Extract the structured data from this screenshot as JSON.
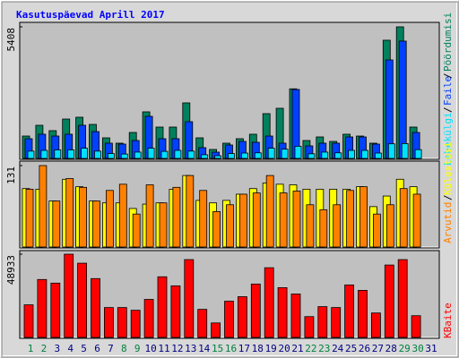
{
  "title": "Kasutuspäevad Aprill 2017",
  "separator": "/",
  "chart_data": [
    {
      "type": "bar",
      "categories": [
        1,
        2,
        3,
        4,
        5,
        6,
        7,
        8,
        9,
        10,
        11,
        12,
        13,
        14,
        15,
        16,
        17,
        18,
        19,
        20,
        21,
        22,
        23,
        24,
        25,
        26,
        27,
        28,
        29,
        30,
        31
      ],
      "ylim": [
        0,
        5408
      ],
      "yticks": [
        5408
      ],
      "series": [
        {
          "name": "Pöördumisi",
          "color": "#00805c",
          "values": [
            920,
            1362,
            1141,
            1619,
            1693,
            1398,
            846,
            626,
            1067,
            1914,
            1288,
            1288,
            2282,
            846,
            368,
            626,
            810,
            994,
            1840,
            2061,
            2860,
            736,
            883,
            699,
            994,
            920,
            626,
            4858,
            5408,
            1288,
            null
          ]
        },
        {
          "name": "Faile",
          "color": "#0040ff",
          "values": [
            810,
            994,
            920,
            994,
            1362,
            1104,
            626,
            589,
            736,
            1730,
            810,
            810,
            1509,
            442,
            258,
            552,
            699,
            662,
            920,
            626,
            2834,
            515,
            626,
            626,
            883,
            883,
            589,
            4048,
            4821,
            1067,
            null
          ]
        },
        {
          "name": "Lehekülgi",
          "color": "#00e0ff",
          "values": [
            300,
            330,
            350,
            350,
            420,
            300,
            200,
            180,
            260,
            420,
            290,
            330,
            300,
            150,
            110,
            200,
            220,
            230,
            420,
            380,
            500,
            190,
            260,
            230,
            330,
            330,
            220,
            600,
            610,
            360,
            null
          ]
        }
      ]
    },
    {
      "type": "bar",
      "categories": [
        1,
        2,
        3,
        4,
        5,
        6,
        7,
        8,
        9,
        10,
        11,
        12,
        13,
        14,
        15,
        16,
        17,
        18,
        19,
        20,
        21,
        22,
        23,
        24,
        25,
        26,
        27,
        28,
        29,
        30,
        31
      ],
      "ylim": [
        0,
        131
      ],
      "yticks": [
        131
      ],
      "series": [
        {
          "name": "Külastusi",
          "color": "#ffff00",
          "values": [
            94,
            93,
            74,
            109,
            97,
            74,
            71,
            71,
            62,
            69,
            71,
            93,
            115,
            75,
            71,
            75,
            85,
            94,
            103,
            101,
            100,
            93,
            93,
            93,
            93,
            97,
            65,
            82,
            109,
            97,
            null
          ]
        },
        {
          "name": "Arvutid",
          "color": "#ff8000",
          "values": [
            93,
            131,
            74,
            110,
            96,
            74,
            91,
            101,
            53,
            100,
            71,
            96,
            115,
            91,
            57,
            68,
            85,
            87,
            115,
            87,
            90,
            68,
            60,
            68,
            91,
            97,
            53,
            68,
            94,
            85,
            null
          ]
        }
      ]
    },
    {
      "type": "bar",
      "categories": [
        1,
        2,
        3,
        4,
        5,
        6,
        7,
        8,
        9,
        10,
        11,
        12,
        13,
        14,
        15,
        16,
        17,
        18,
        19,
        20,
        21,
        22,
        23,
        24,
        25,
        26,
        27,
        28,
        29,
        30,
        31
      ],
      "category_colors": [
        "#008040",
        "#008040",
        "#000080",
        "#000080",
        "#000080",
        "#000080",
        "#000080",
        "#008040",
        "#008040",
        "#000080",
        "#000080",
        "#000080",
        "#000080",
        "#000080",
        "#008040",
        "#008040",
        "#000080",
        "#000080",
        "#000080",
        "#000080",
        "#000080",
        "#008040",
        "#008040",
        "#000080",
        "#000080",
        "#000080",
        "#000080",
        "#000080",
        "#008040",
        "#008040",
        "#000080"
      ],
      "ylim": [
        0,
        48933
      ],
      "yticks": [
        48933
      ],
      "series": [
        {
          "name": "KBaite",
          "color": "#ff0000",
          "values": [
            19152,
            34048,
            31920,
            48933,
            43624,
            34580,
            17556,
            17556,
            15960,
            22344,
            35644,
            30324,
            45752,
            16492,
            8512,
            21280,
            23940,
            31388,
            40964,
            29260,
            25536,
            12236,
            18088,
            17556,
            30856,
            27664,
            14364,
            42560,
            45752,
            12768,
            null
          ]
        }
      ]
    }
  ]
}
